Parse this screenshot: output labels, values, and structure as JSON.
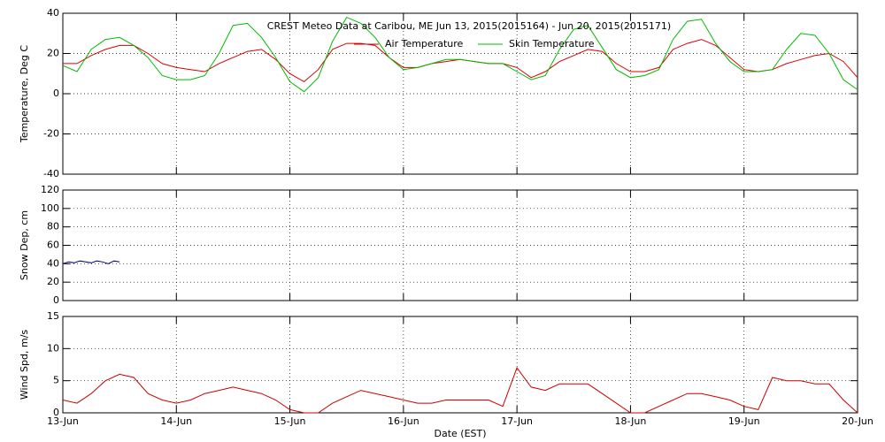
{
  "chart_data": [
    {
      "type": "line",
      "title": "CREST Meteo Data at Caribou, ME   Jun 13, 2015(2015164) - Jun 20, 2015(2015171)",
      "ylabel": "Temperature, Deg C",
      "ylim": [
        -40,
        40
      ],
      "yticks": [
        -40,
        -20,
        0,
        20,
        40
      ],
      "grid": true,
      "legend": "top",
      "xlim": [
        0,
        7
      ],
      "x": [
        0,
        0.125,
        0.25,
        0.375,
        0.5,
        0.625,
        0.75,
        0.875,
        1,
        1.125,
        1.25,
        1.375,
        1.5,
        1.625,
        1.75,
        1.875,
        2,
        2.125,
        2.25,
        2.375,
        2.5,
        2.625,
        2.75,
        2.875,
        3,
        3.125,
        3.25,
        3.375,
        3.5,
        3.625,
        3.75,
        3.875,
        4,
        4.125,
        4.25,
        4.375,
        4.5,
        4.625,
        4.75,
        4.875,
        5,
        5.125,
        5.25,
        5.375,
        5.5,
        5.625,
        5.75,
        5.875,
        6,
        6.125,
        6.25,
        6.375,
        6.5,
        6.625,
        6.75,
        6.875,
        7
      ],
      "series": [
        {
          "name": "Air Temperature",
          "color": "#dd0000",
          "values": [
            15,
            15,
            19,
            22,
            24,
            24,
            20,
            15,
            13,
            12,
            11,
            15,
            18,
            21,
            22,
            17,
            10,
            6,
            12,
            22,
            25,
            25,
            24,
            18,
            13,
            13,
            15,
            16,
            17,
            16,
            15,
            15,
            13,
            8,
            11,
            16,
            19,
            22,
            21,
            15,
            11,
            11,
            13,
            22,
            25,
            27,
            24,
            18,
            12,
            11,
            12,
            15,
            17,
            19,
            20,
            16,
            8
          ]
        },
        {
          "name": "Skin Temperature",
          "color": "#00bb00",
          "values": [
            14,
            11,
            22,
            27,
            28,
            24,
            18,
            9,
            7,
            7,
            9,
            20,
            34,
            35,
            28,
            18,
            6,
            1,
            8,
            26,
            38,
            35,
            28,
            18,
            12,
            13,
            15,
            17,
            17,
            16,
            15,
            15,
            11,
            7,
            9,
            22,
            32,
            34,
            23,
            12,
            8,
            9,
            12,
            27,
            36,
            37,
            25,
            16,
            11,
            11,
            12,
            22,
            30,
            29,
            20,
            7,
            2
          ]
        }
      ]
    },
    {
      "type": "line",
      "ylabel": "Snow Dep, cm",
      "ylim": [
        0,
        120
      ],
      "yticks": [
        0,
        20,
        40,
        60,
        80,
        100,
        120
      ],
      "grid": true,
      "xlim": [
        0,
        7
      ],
      "x": [
        0,
        0.05,
        0.1,
        0.15,
        0.2,
        0.25,
        0.3,
        0.35,
        0.4,
        0.45,
        0.5
      ],
      "series": [
        {
          "color": "#000080",
          "values": [
            40,
            42,
            41,
            43,
            42,
            41,
            43,
            42,
            40,
            43,
            42
          ]
        }
      ]
    },
    {
      "type": "line",
      "ylabel": "Wind Spd, m/s",
      "xlabel": "Date (EST)",
      "ylim": [
        0,
        15
      ],
      "yticks": [
        0,
        5,
        10,
        15
      ],
      "grid": true,
      "xlim": [
        0,
        7
      ],
      "xticks": [
        {
          "value": 0,
          "label": "13-Jun"
        },
        {
          "value": 1,
          "label": "14-Jun"
        },
        {
          "value": 2,
          "label": "15-Jun"
        },
        {
          "value": 3,
          "label": "16-Jun"
        },
        {
          "value": 4,
          "label": "17-Jun"
        },
        {
          "value": 5,
          "label": "18-Jun"
        },
        {
          "value": 6,
          "label": "19-Jun"
        },
        {
          "value": 7,
          "label": "20-Jun"
        }
      ],
      "x": [
        0,
        0.125,
        0.25,
        0.375,
        0.5,
        0.625,
        0.75,
        0.875,
        1,
        1.125,
        1.25,
        1.375,
        1.5,
        1.625,
        1.75,
        1.875,
        2,
        2.125,
        2.25,
        2.375,
        2.5,
        2.625,
        2.75,
        2.875,
        3,
        3.125,
        3.25,
        3.375,
        3.5,
        3.625,
        3.75,
        3.875,
        4,
        4.125,
        4.25,
        4.375,
        4.5,
        4.625,
        4.75,
        4.875,
        5,
        5.125,
        5.25,
        5.375,
        5.5,
        5.625,
        5.75,
        5.875,
        6,
        6.125,
        6.25,
        6.375,
        6.5,
        6.625,
        6.75,
        6.875,
        7
      ],
      "series": [
        {
          "color": "#cc0000",
          "values": [
            2,
            1.5,
            3,
            5,
            6,
            5.5,
            3,
            2,
            1.5,
            2,
            3,
            3.5,
            4,
            3.5,
            3,
            2,
            0.5,
            0,
            0,
            1.5,
            2.5,
            3.5,
            3,
            2.5,
            2,
            1.5,
            1.5,
            2,
            2,
            2,
            2,
            1,
            7,
            4,
            3.5,
            4.5,
            4.5,
            4.5,
            3,
            1.5,
            0,
            0,
            1,
            2,
            3,
            3,
            2.5,
            2,
            1,
            0.5,
            5.5,
            5,
            5,
            4.5,
            4.5,
            2,
            0
          ]
        }
      ]
    }
  ]
}
